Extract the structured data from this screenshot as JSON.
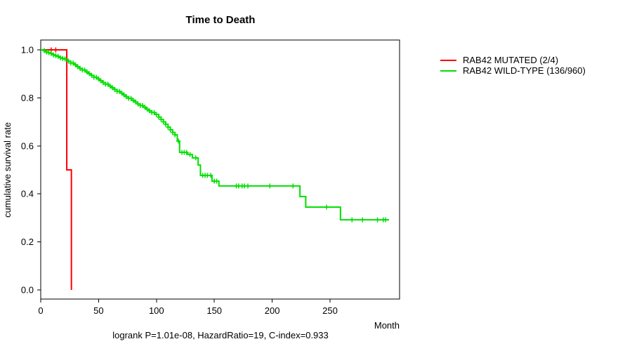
{
  "title": "Time to Death",
  "caption": "logrank P=1.01e-08, HazardRatio=19, C-index=0.933",
  "axes": {
    "x": {
      "label": "Month",
      "ticks": [
        "0",
        "50",
        "100",
        "150",
        "200",
        "250"
      ],
      "tick_values": [
        0,
        50,
        100,
        150,
        200,
        250
      ]
    },
    "y": {
      "label": "cumulative survival rate",
      "ticks": [
        "0.0",
        "0.2",
        "0.4",
        "0.6",
        "0.8",
        "1.0"
      ],
      "tick_values": [
        0.0,
        0.2,
        0.4,
        0.6,
        0.8,
        1.0
      ]
    }
  },
  "colors": {
    "mutated": "#ff0000",
    "wildtype": "#00e000",
    "axis": "#000000",
    "background": "#ffffff"
  },
  "chart_data": {
    "type": "line",
    "subtype": "kaplan-meier-step",
    "title": "Time to Death",
    "xlabel": "Month",
    "ylabel": "cumulative survival rate",
    "xlim": [
      0,
      310
    ],
    "ylim": [
      0.0,
      1.0
    ],
    "grid": false,
    "legend_position": "right-outside",
    "stats": {
      "logrank_p": "1.01e-08",
      "hazard_ratio": "19",
      "c_index": "0.933"
    },
    "series": [
      {
        "name": "RAB42 MUTATED (2/4)",
        "color": "#ff0000",
        "end_month": 26.5,
        "steps": [
          [
            0,
            1.0
          ],
          [
            22.5,
            0.5
          ],
          [
            26.5,
            0.0
          ]
        ],
        "censor_months": [
          9,
          13
        ]
      },
      {
        "name": "RAB42 WILD-TYPE (136/960)",
        "color": "#00e000",
        "end_month": 301,
        "steps": [
          [
            0,
            1.0
          ],
          [
            2,
            0.997
          ],
          [
            3.5,
            0.994
          ],
          [
            5,
            0.991
          ],
          [
            6.5,
            0.988
          ],
          [
            8,
            0.985
          ],
          [
            9.5,
            0.982
          ],
          [
            11,
            0.979
          ],
          [
            12.5,
            0.976
          ],
          [
            14,
            0.973
          ],
          [
            15.5,
            0.97
          ],
          [
            17,
            0.967
          ],
          [
            18.5,
            0.964
          ],
          [
            20,
            0.962
          ],
          [
            21.5,
            0.96
          ],
          [
            23.5,
            0.953
          ],
          [
            26,
            0.945
          ],
          [
            28.5,
            0.938
          ],
          [
            31,
            0.93
          ],
          [
            33.5,
            0.923
          ],
          [
            36,
            0.916
          ],
          [
            38.5,
            0.908
          ],
          [
            41,
            0.901
          ],
          [
            43.5,
            0.894
          ],
          [
            46,
            0.886
          ],
          [
            48.5,
            0.879
          ],
          [
            51,
            0.871
          ],
          [
            53.5,
            0.864
          ],
          [
            56,
            0.857
          ],
          [
            58.5,
            0.849
          ],
          [
            61,
            0.842
          ],
          [
            63.5,
            0.835
          ],
          [
            66,
            0.827
          ],
          [
            68.5,
            0.82
          ],
          [
            71,
            0.812
          ],
          [
            73.5,
            0.805
          ],
          [
            76,
            0.798
          ],
          [
            78.5,
            0.79
          ],
          [
            81,
            0.783
          ],
          [
            83.5,
            0.775
          ],
          [
            86,
            0.768
          ],
          [
            88.5,
            0.761
          ],
          [
            91,
            0.753
          ],
          [
            93.5,
            0.746
          ],
          [
            96,
            0.739
          ],
          [
            98.5,
            0.731
          ],
          [
            102,
            0.72
          ],
          [
            104,
            0.71
          ],
          [
            106,
            0.7
          ],
          [
            108,
            0.69
          ],
          [
            110,
            0.678
          ],
          [
            112,
            0.667
          ],
          [
            114,
            0.656
          ],
          [
            116,
            0.646
          ],
          [
            118,
            0.62
          ],
          [
            120,
            0.573
          ],
          [
            127,
            0.564
          ],
          [
            131,
            0.55
          ],
          [
            136,
            0.52
          ],
          [
            138,
            0.477
          ],
          [
            148,
            0.453
          ],
          [
            154,
            0.433
          ],
          [
            224,
            0.389
          ],
          [
            229,
            0.345
          ],
          [
            259,
            0.292
          ]
        ],
        "censor_months": [
          3,
          5,
          7,
          9,
          11,
          13,
          15,
          17,
          19,
          21,
          24,
          26,
          28,
          30,
          32,
          34,
          36,
          38,
          40,
          42,
          44,
          46,
          48,
          50,
          52,
          54,
          56,
          58,
          60,
          62,
          64,
          66,
          68,
          70,
          72,
          74,
          76,
          78,
          80,
          82,
          84,
          86,
          88,
          90,
          92,
          94,
          96,
          98,
          100,
          102,
          104,
          106,
          108,
          110,
          112,
          114,
          116,
          119,
          122,
          124,
          126,
          129,
          134,
          140,
          142,
          144,
          147,
          150,
          152,
          169,
          171,
          174,
          176,
          179,
          198,
          218,
          247,
          269,
          278,
          291,
          296,
          298
        ]
      }
    ]
  }
}
